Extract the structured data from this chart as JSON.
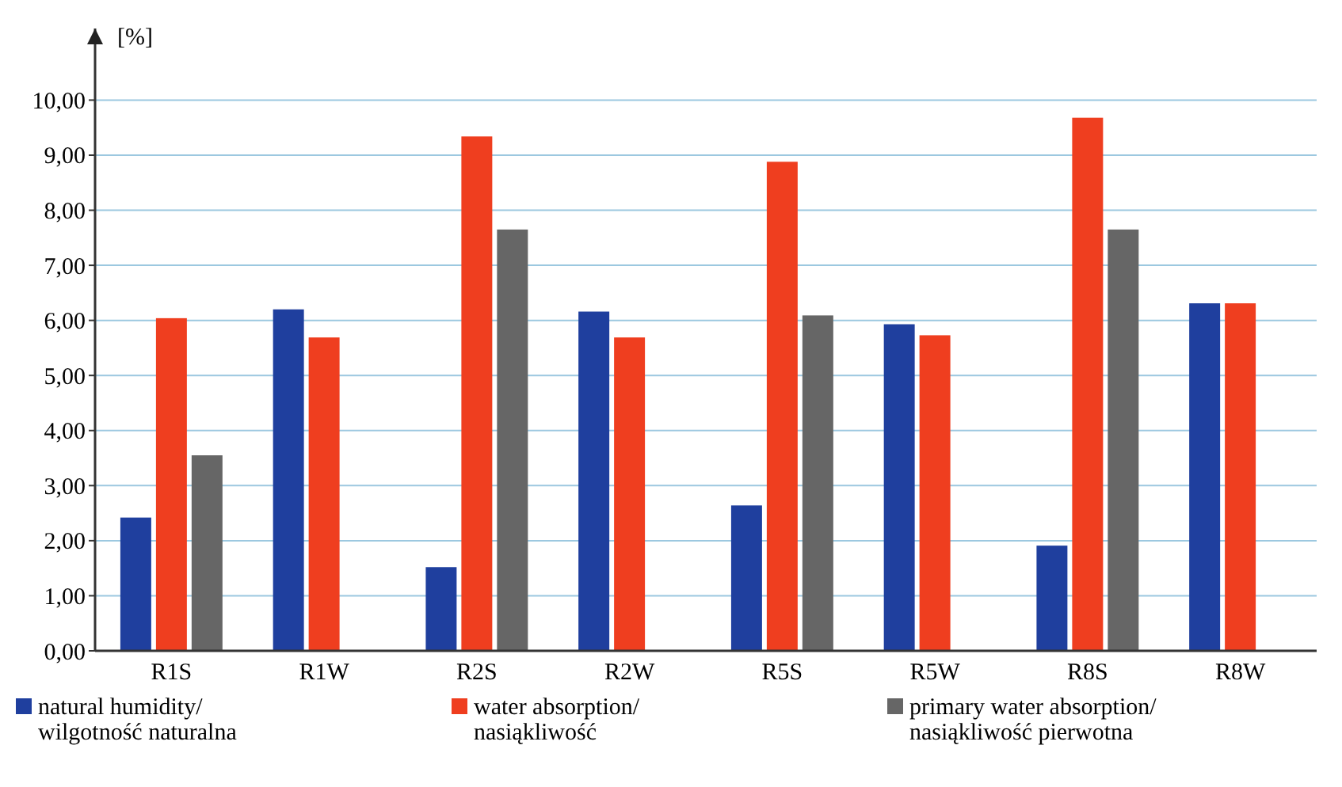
{
  "chart_data": {
    "type": "bar",
    "ylabel": "[%]",
    "categories": [
      "R1S",
      "R1W",
      "R2S",
      "R2W",
      "R5S",
      "R5W",
      "R8S",
      "R8W"
    ],
    "series": [
      {
        "name": "natural humidity/ wilgotność naturalna",
        "color": "#1f3f9e",
        "values": [
          2.42,
          6.2,
          1.52,
          6.16,
          2.64,
          5.93,
          1.91,
          6.31
        ]
      },
      {
        "name": "water absorption/ nasiąkliwość",
        "color": "#ef3e1f",
        "values": [
          6.04,
          5.69,
          9.34,
          5.69,
          8.88,
          5.73,
          9.68,
          6.31
        ]
      },
      {
        "name": "primary water absorption/ nasiąkliwość pierwotna",
        "color": "#666666",
        "values": [
          3.55,
          null,
          7.65,
          null,
          6.09,
          null,
          7.65,
          null
        ]
      }
    ],
    "ylim": [
      0,
      11.3
    ],
    "yticks": [
      {
        "value": 0,
        "label": "0,00"
      },
      {
        "value": 1,
        "label": "1,00"
      },
      {
        "value": 2,
        "label": "2,00"
      },
      {
        "value": 3,
        "label": "3,00"
      },
      {
        "value": 4,
        "label": "4,00"
      },
      {
        "value": 5,
        "label": "5,00"
      },
      {
        "value": 6,
        "label": "6,00"
      },
      {
        "value": 7,
        "label": "7,00"
      },
      {
        "value": 8,
        "label": "8,00"
      },
      {
        "value": 9,
        "label": "9,00"
      },
      {
        "value": 10,
        "label": "10,00"
      }
    ],
    "grid": "y",
    "legend": "bottom"
  }
}
